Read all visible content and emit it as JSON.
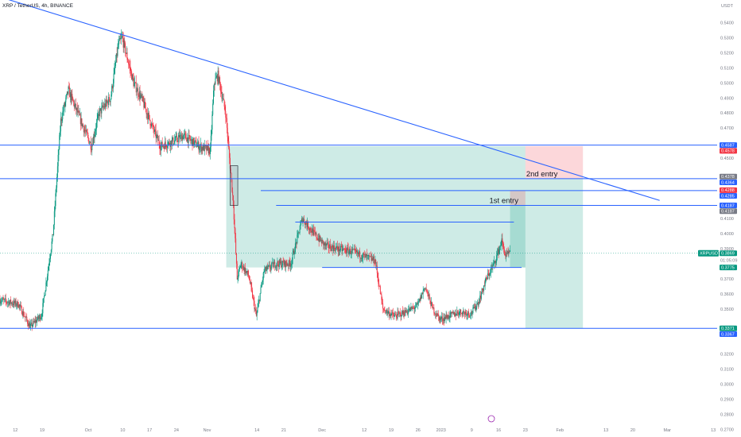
{
  "chart_data": {
    "type": "candlestick",
    "symbol_title": "XRP / TetherUS, 4h, BINANCE",
    "currency": "USDT",
    "xlabel": "",
    "ylabel": "",
    "ylim": [
      0.265,
      0.555
    ],
    "y_ticks": [
      {
        "value": 0.54,
        "label": "0.5400"
      },
      {
        "value": 0.53,
        "label": "0.5300"
      },
      {
        "value": 0.52,
        "label": "0.5200"
      },
      {
        "value": 0.51,
        "label": "0.5100"
      },
      {
        "value": 0.5,
        "label": "0.5000"
      },
      {
        "value": 0.49,
        "label": "0.4900"
      },
      {
        "value": 0.48,
        "label": "0.4800"
      },
      {
        "value": 0.47,
        "label": "0.4700"
      },
      {
        "value": 0.45,
        "label": "0.4500"
      },
      {
        "value": 0.41,
        "label": "0.4100"
      },
      {
        "value": 0.4,
        "label": "0.4000"
      },
      {
        "value": 0.39,
        "label": "0.3900"
      },
      {
        "value": 0.37,
        "label": "0.3700"
      },
      {
        "value": 0.36,
        "label": "0.3600"
      },
      {
        "value": 0.35,
        "label": "0.3500"
      },
      {
        "value": 0.32,
        "label": "0.3200"
      },
      {
        "value": 0.31,
        "label": "0.3100"
      },
      {
        "value": 0.3,
        "label": "0.3000"
      },
      {
        "value": 0.29,
        "label": "0.2900"
      },
      {
        "value": 0.28,
        "label": "0.2800"
      },
      {
        "value": 0.27,
        "label": "0.2700"
      }
    ],
    "x_ticks": [
      {
        "date": "2022-09-12",
        "label": "12"
      },
      {
        "date": "2022-09-19",
        "label": "19"
      },
      {
        "date": "2022-10-01",
        "label": "Oct"
      },
      {
        "date": "2022-10-10",
        "label": "10"
      },
      {
        "date": "2022-10-17",
        "label": "17"
      },
      {
        "date": "2022-10-24",
        "label": "24"
      },
      {
        "date": "2022-11-01",
        "label": "Nov"
      },
      {
        "date": "2022-11-14",
        "label": "14"
      },
      {
        "date": "2022-11-21",
        "label": "21"
      },
      {
        "date": "2022-12-01",
        "label": "Dec"
      },
      {
        "date": "2022-12-12",
        "label": "12"
      },
      {
        "date": "2022-12-19",
        "label": "19"
      },
      {
        "date": "2022-12-26",
        "label": "26"
      },
      {
        "date": "2023-01-01",
        "label": "2023"
      },
      {
        "date": "2023-01-09",
        "label": "9"
      },
      {
        "date": "2023-01-16",
        "label": "16"
      },
      {
        "date": "2023-01-23",
        "label": "23"
      },
      {
        "date": "2023-02-01",
        "label": "Feb"
      },
      {
        "date": "2023-02-13",
        "label": "13"
      },
      {
        "date": "2023-02-20",
        "label": "20"
      },
      {
        "date": "2023-03-01",
        "label": "Mar"
      },
      {
        "date": "2023-03-13",
        "label": "13"
      }
    ],
    "x_range": [
      "2022-09-08",
      "2023-03-14"
    ],
    "price_path": [
      {
        "date": "2022-09-08",
        "price": 0.356
      },
      {
        "date": "2022-09-13",
        "price": 0.353
      },
      {
        "date": "2022-09-16",
        "price": 0.338
      },
      {
        "date": "2022-09-19",
        "price": 0.346
      },
      {
        "date": "2022-09-22",
        "price": 0.4
      },
      {
        "date": "2022-09-24",
        "price": 0.475
      },
      {
        "date": "2022-09-26",
        "price": 0.495
      },
      {
        "date": "2022-09-30",
        "price": 0.47
      },
      {
        "date": "2022-10-02",
        "price": 0.458
      },
      {
        "date": "2022-10-04",
        "price": 0.48
      },
      {
        "date": "2022-10-07",
        "price": 0.49
      },
      {
        "date": "2022-10-09",
        "price": 0.525
      },
      {
        "date": "2022-10-10",
        "price": 0.53
      },
      {
        "date": "2022-10-13",
        "price": 0.5
      },
      {
        "date": "2022-10-15",
        "price": 0.49
      },
      {
        "date": "2022-10-18",
        "price": 0.47
      },
      {
        "date": "2022-10-20",
        "price": 0.458
      },
      {
        "date": "2022-10-24",
        "price": 0.462
      },
      {
        "date": "2022-10-26",
        "price": 0.465
      },
      {
        "date": "2022-10-30",
        "price": 0.458
      },
      {
        "date": "2022-11-02",
        "price": 0.455
      },
      {
        "date": "2022-11-03",
        "price": 0.5
      },
      {
        "date": "2022-11-04",
        "price": 0.505
      },
      {
        "date": "2022-11-06",
        "price": 0.48
      },
      {
        "date": "2022-11-08",
        "price": 0.42
      },
      {
        "date": "2022-11-09",
        "price": 0.37
      },
      {
        "date": "2022-11-10",
        "price": 0.38
      },
      {
        "date": "2022-11-12",
        "price": 0.372
      },
      {
        "date": "2022-11-14",
        "price": 0.345
      },
      {
        "date": "2022-11-16",
        "price": 0.375
      },
      {
        "date": "2022-11-19",
        "price": 0.38
      },
      {
        "date": "2022-11-23",
        "price": 0.38
      },
      {
        "date": "2022-11-25",
        "price": 0.4
      },
      {
        "date": "2022-11-26",
        "price": 0.41
      },
      {
        "date": "2022-11-29",
        "price": 0.4
      },
      {
        "date": "2022-12-02",
        "price": 0.392
      },
      {
        "date": "2022-12-05",
        "price": 0.39
      },
      {
        "date": "2022-12-09",
        "price": 0.388
      },
      {
        "date": "2022-12-12",
        "price": 0.385
      },
      {
        "date": "2022-12-15",
        "price": 0.382
      },
      {
        "date": "2022-12-17",
        "price": 0.35
      },
      {
        "date": "2022-12-20",
        "price": 0.345
      },
      {
        "date": "2022-12-23",
        "price": 0.348
      },
      {
        "date": "2022-12-26",
        "price": 0.352
      },
      {
        "date": "2022-12-28",
        "price": 0.365
      },
      {
        "date": "2022-12-30",
        "price": 0.35
      },
      {
        "date": "2023-01-01",
        "price": 0.343
      },
      {
        "date": "2023-01-03",
        "price": 0.345
      },
      {
        "date": "2023-01-06",
        "price": 0.348
      },
      {
        "date": "2023-01-09",
        "price": 0.347
      },
      {
        "date": "2023-01-11",
        "price": 0.355
      },
      {
        "date": "2023-01-13",
        "price": 0.37
      },
      {
        "date": "2023-01-15",
        "price": 0.38
      },
      {
        "date": "2023-01-17",
        "price": 0.395
      },
      {
        "date": "2023-01-18",
        "price": 0.385
      },
      {
        "date": "2023-01-19",
        "price": 0.3869
      }
    ],
    "horizontal_lines": [
      {
        "price": 0.4587,
        "from": "2022-09-08",
        "to": "2023-03-14",
        "color": "#2962ff"
      },
      {
        "price": 0.4364,
        "from": "2022-09-08",
        "to": "2023-03-14",
        "color": "#2962ff"
      },
      {
        "price": 0.4285,
        "from": "2022-11-15",
        "to": "2023-03-14",
        "color": "#2962ff"
      },
      {
        "price": 0.4187,
        "from": "2022-11-19",
        "to": "2023-03-14",
        "color": "#2962ff"
      },
      {
        "price": 0.3371,
        "from": "2022-09-08",
        "to": "2023-03-14",
        "color": "#2962ff"
      },
      {
        "price": 0.4076,
        "from": "2022-11-24",
        "to": "2023-01-20",
        "color": "#2962ff"
      },
      {
        "price": 0.3775,
        "from": "2022-12-01",
        "to": "2023-01-22",
        "color": "#2962ff"
      }
    ],
    "trendline": {
      "from": {
        "date": "2022-09-08",
        "price": 0.557
      },
      "to": {
        "date": "2023-02-27",
        "price": 0.422
      },
      "color": "#2962ff"
    },
    "positions": [
      {
        "label": "",
        "entry": 0.458,
        "target": 0.3775,
        "stop": 0.458,
        "from": "2022-11-06",
        "to": "2023-01-23"
      },
      {
        "label": "1st entry",
        "entry": 0.4187,
        "target": 0.3775,
        "stop": 0.4285,
        "from": "2023-01-19",
        "to": "2023-01-23"
      },
      {
        "label": "2nd entry",
        "entry": 0.4364,
        "target": 0.3371,
        "stop": 0.458,
        "from": "2023-01-23",
        "to": "2023-02-07"
      }
    ],
    "highlight_box": {
      "from": "2022-11-07",
      "to": "2022-11-09",
      "high": 0.445,
      "low": 0.4187
    },
    "price_badges": [
      {
        "value": 0.4587,
        "label": "0.4587",
        "color": "#2962ff"
      },
      {
        "value": 0.4578,
        "label": "0.4578",
        "color": "#f23645"
      },
      {
        "value": 0.4378,
        "label": "0.4378",
        "color": "#787b86"
      },
      {
        "value": 0.4364,
        "label": "0.4364",
        "color": "#2962ff"
      },
      {
        "value": 0.4288,
        "label": "0.4288",
        "color": "#f23645"
      },
      {
        "value": 0.4285,
        "label": "0.4285",
        "color": "#2962ff"
      },
      {
        "value": 0.4187,
        "label": "0.4187",
        "color": "#2962ff"
      },
      {
        "value": 0.4187,
        "label": "0.4187",
        "color": "#787b86"
      },
      {
        "value": 0.3869,
        "label": "0.3869",
        "color": "#089981"
      },
      {
        "value": 0.3775,
        "label": "0.3775",
        "color": "#089981"
      },
      {
        "value": 0.3371,
        "label": "0.3371",
        "color": "#089981"
      },
      {
        "value": 0.3367,
        "label": "0.3367",
        "color": "#2962ff"
      }
    ],
    "last_price": {
      "value": 0.3869,
      "symbol": "XRPUSDT",
      "label": "0.3869",
      "countdown": "01:05:09"
    },
    "colors": {
      "up": "#089981",
      "down": "#f23645",
      "line": "#2962ff",
      "profit_zone": "rgba(8,153,129,0.20)",
      "loss_zone": "rgba(242,54,69,0.20)"
    }
  }
}
